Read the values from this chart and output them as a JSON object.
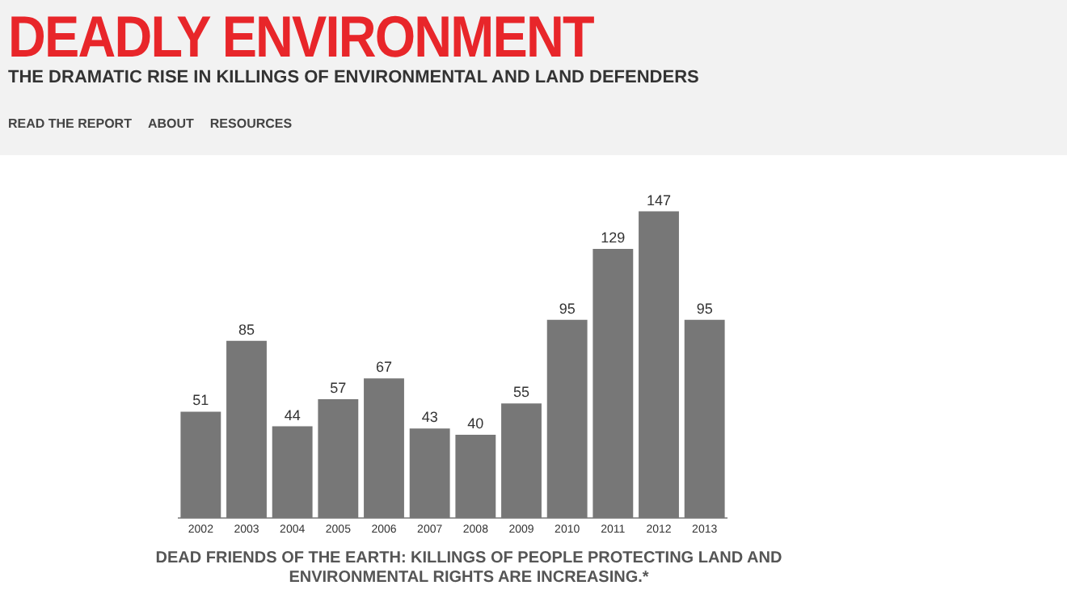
{
  "chart_data": {
    "type": "bar",
    "title": "DEADLY ENVIRONMENT",
    "subtitle": "THE DRAMATIC RISE IN KILLINGS OF ENVIRONMENTAL AND LAND DEFENDERS",
    "categories": [
      "2002",
      "2003",
      "2004",
      "2005",
      "2006",
      "2007",
      "2008",
      "2009",
      "2010",
      "2011",
      "2012",
      "2013"
    ],
    "values": [
      51,
      85,
      44,
      57,
      67,
      43,
      40,
      55,
      95,
      129,
      147,
      95
    ],
    "color": "#777777",
    "data_labels": true,
    "tick_labels": "x",
    "grid": false,
    "legend": false,
    "annotations": [
      "READ THE REPORT",
      "ABOUT",
      "RESOURCES",
      "DEAD FRIENDS OF THE EARTH: KILLINGS OF PEOPLE PROTECTING LAND AND ENVIRONMENTAL RIGHTS ARE INCREASING.*"
    ]
  }
}
